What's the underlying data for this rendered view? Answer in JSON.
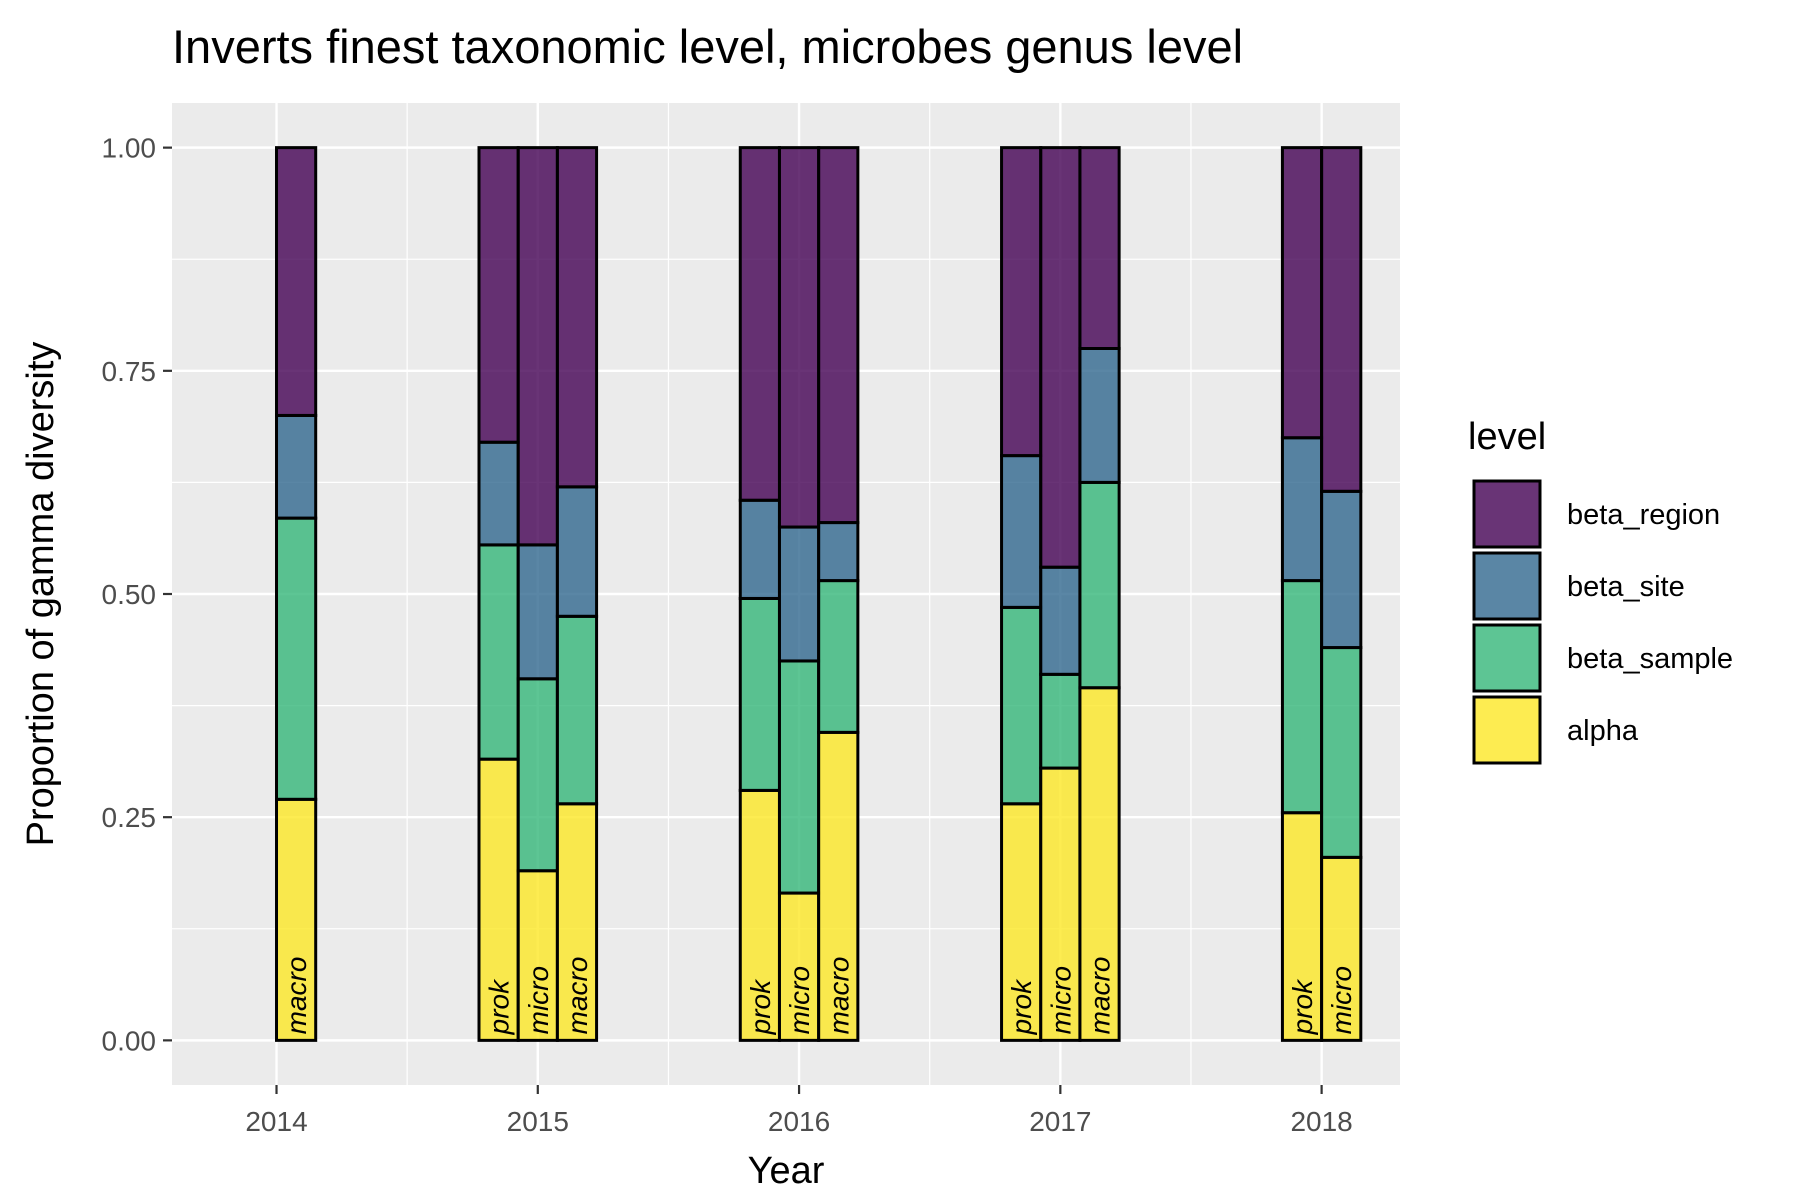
{
  "chart_data": {
    "type": "bar",
    "stacked": true,
    "title": "Inverts finest taxonomic level, microbes genus level",
    "xlabel": "Year",
    "ylabel": "Proportion of gamma diversity",
    "ylim": [
      -0.05,
      1.05
    ],
    "xlim": [
      2013.6,
      2018.3
    ],
    "x_ticks": [
      "2014",
      "2015",
      "2016",
      "2017",
      "2018"
    ],
    "y_ticks": [
      "0.00",
      "0.25",
      "0.50",
      "0.75",
      "1.00"
    ],
    "grid": true,
    "legend": {
      "title": "level",
      "position": "right",
      "entries": [
        {
          "name": "beta_region",
          "color": "#440154"
        },
        {
          "name": "beta_site",
          "color": "#31688E"
        },
        {
          "name": "beta_sample",
          "color": "#35B779"
        },
        {
          "name": "alpha",
          "color": "#FDE725"
        }
      ]
    },
    "series_order_bottom_to_top": [
      "alpha",
      "beta_sample",
      "beta_site",
      "beta_region"
    ],
    "bars": [
      {
        "year": 2014,
        "group": "macro",
        "alpha": 0.27,
        "beta_sample": 0.315,
        "beta_site": 0.115,
        "beta_region": 0.3
      },
      {
        "year": 2015,
        "group": "prok",
        "alpha": 0.315,
        "beta_sample": 0.24,
        "beta_site": 0.115,
        "beta_region": 0.33
      },
      {
        "year": 2015,
        "group": "micro",
        "alpha": 0.19,
        "beta_sample": 0.215,
        "beta_site": 0.15,
        "beta_region": 0.445
      },
      {
        "year": 2015,
        "group": "macro",
        "alpha": 0.265,
        "beta_sample": 0.21,
        "beta_site": 0.145,
        "beta_region": 0.38
      },
      {
        "year": 2016,
        "group": "prok",
        "alpha": 0.28,
        "beta_sample": 0.215,
        "beta_site": 0.11,
        "beta_region": 0.395
      },
      {
        "year": 2016,
        "group": "micro",
        "alpha": 0.165,
        "beta_sample": 0.26,
        "beta_site": 0.15,
        "beta_region": 0.425
      },
      {
        "year": 2016,
        "group": "macro",
        "alpha": 0.345,
        "beta_sample": 0.17,
        "beta_site": 0.065,
        "beta_region": 0.42
      },
      {
        "year": 2017,
        "group": "prok",
        "alpha": 0.265,
        "beta_sample": 0.22,
        "beta_site": 0.17,
        "beta_region": 0.345
      },
      {
        "year": 2017,
        "group": "micro",
        "alpha": 0.305,
        "beta_sample": 0.105,
        "beta_site": 0.12,
        "beta_region": 0.47
      },
      {
        "year": 2017,
        "group": "macro",
        "alpha": 0.395,
        "beta_sample": 0.23,
        "beta_site": 0.15,
        "beta_region": 0.225
      },
      {
        "year": 2018,
        "group": "prok",
        "alpha": 0.255,
        "beta_sample": 0.26,
        "beta_site": 0.16,
        "beta_region": 0.325
      },
      {
        "year": 2018,
        "group": "micro",
        "alpha": 0.205,
        "beta_sample": 0.235,
        "beta_site": 0.175,
        "beta_region": 0.385
      }
    ]
  }
}
